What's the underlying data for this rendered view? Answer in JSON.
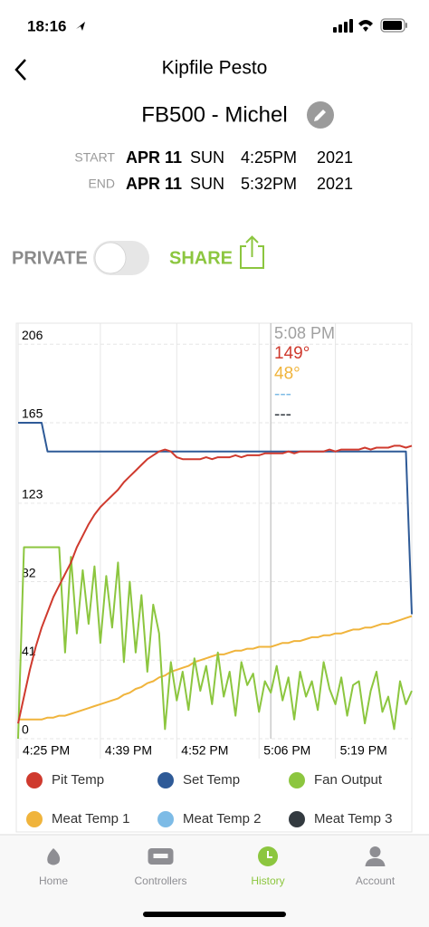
{
  "status_bar": {
    "time": "18:16"
  },
  "header": {
    "title": "Kipfile Pesto"
  },
  "device": {
    "name": "FB500 - Michel"
  },
  "session": {
    "rows": [
      {
        "label": "START",
        "date": "APR 11",
        "day": "SUN",
        "time": "4:25PM",
        "year": "2021"
      },
      {
        "label": "END",
        "date": "APR 11",
        "day": "SUN",
        "time": "5:32PM",
        "year": "2021"
      }
    ]
  },
  "sharing": {
    "private_label": "PRIVATE",
    "share_label": "SHARE",
    "private": false
  },
  "chart_data": {
    "type": "line",
    "x": [
      "4:25 PM",
      "4:26 PM",
      "4:27 PM",
      "4:28 PM",
      "4:29 PM",
      "4:30 PM",
      "4:31 PM",
      "4:32 PM",
      "4:33 PM",
      "4:34 PM",
      "4:35 PM",
      "4:36 PM",
      "4:37 PM",
      "4:38 PM",
      "4:39 PM",
      "4:40 PM",
      "4:41 PM",
      "4:42 PM",
      "4:43 PM",
      "4:44 PM",
      "4:45 PM",
      "4:46 PM",
      "4:47 PM",
      "4:48 PM",
      "4:49 PM",
      "4:50 PM",
      "4:51 PM",
      "4:52 PM",
      "4:53 PM",
      "4:54 PM",
      "4:55 PM",
      "4:56 PM",
      "4:57 PM",
      "4:58 PM",
      "4:59 PM",
      "5:00 PM",
      "5:01 PM",
      "5:02 PM",
      "5:03 PM",
      "5:04 PM",
      "5:05 PM",
      "5:06 PM",
      "5:07 PM",
      "5:08 PM",
      "5:09 PM",
      "5:10 PM",
      "5:11 PM",
      "5:12 PM",
      "5:13 PM",
      "5:14 PM",
      "5:15 PM",
      "5:16 PM",
      "5:17 PM",
      "5:18 PM",
      "5:19 PM",
      "5:20 PM",
      "5:21 PM",
      "5:22 PM",
      "5:23 PM",
      "5:24 PM",
      "5:25 PM",
      "5:26 PM",
      "5:27 PM",
      "5:28 PM",
      "5:29 PM",
      "5:30 PM",
      "5:31 PM",
      "5:32 PM"
    ],
    "xticks": [
      "4:25 PM",
      "4:39 PM",
      "4:52 PM",
      "5:06 PM",
      "5:19 PM"
    ],
    "ylim": [
      0,
      217
    ],
    "yticks": [
      0,
      41,
      82,
      123,
      165,
      206
    ],
    "grid": true,
    "series": [
      {
        "name": "Pit Temp",
        "color": "#cf3a2e",
        "values": [
          8,
          22,
          36,
          48,
          58,
          66,
          74,
          80,
          86,
          92,
          100,
          106,
          112,
          117,
          121,
          124,
          127,
          130,
          134,
          137,
          140,
          143,
          146,
          148,
          150,
          151,
          150,
          147,
          146,
          146,
          146,
          146,
          147,
          146,
          147,
          147,
          147,
          148,
          147,
          148,
          148,
          148,
          149,
          149,
          149,
          149,
          150,
          149,
          150,
          150,
          150,
          150,
          150,
          151,
          150,
          151,
          151,
          151,
          151,
          152,
          151,
          152,
          152,
          152,
          153,
          153,
          152,
          153
        ]
      },
      {
        "name": "Set Temp",
        "color": "#2e5a97",
        "values": [
          165,
          165,
          165,
          165,
          165,
          150,
          150,
          150,
          150,
          150,
          150,
          150,
          150,
          150,
          150,
          150,
          150,
          150,
          150,
          150,
          150,
          150,
          150,
          150,
          150,
          150,
          150,
          150,
          150,
          150,
          150,
          150,
          150,
          150,
          150,
          150,
          150,
          150,
          150,
          150,
          150,
          150,
          150,
          150,
          150,
          150,
          150,
          150,
          150,
          150,
          150,
          150,
          150,
          150,
          150,
          150,
          150,
          150,
          150,
          150,
          150,
          150,
          150,
          150,
          150,
          150,
          150,
          65
        ]
      },
      {
        "name": "Fan Output",
        "color": "#8cc63f",
        "values": [
          0,
          100,
          100,
          100,
          100,
          100,
          100,
          100,
          45,
          95,
          55,
          88,
          60,
          90,
          50,
          85,
          58,
          92,
          40,
          82,
          45,
          75,
          35,
          70,
          55,
          5,
          40,
          20,
          35,
          15,
          42,
          25,
          38,
          18,
          45,
          22,
          35,
          12,
          40,
          28,
          34,
          14,
          30,
          24,
          38,
          20,
          32,
          10,
          35,
          22,
          30,
          15,
          40,
          26,
          18,
          32,
          12,
          28,
          30,
          8,
          25,
          35,
          14,
          22,
          5,
          30,
          18,
          25
        ]
      },
      {
        "name": "Meat Temp 1",
        "color": "#f0b43c",
        "values": [
          10,
          10,
          10,
          10,
          10,
          11,
          11,
          12,
          12,
          13,
          14,
          15,
          16,
          17,
          18,
          19,
          20,
          21,
          23,
          24,
          26,
          27,
          29,
          30,
          32,
          33,
          35,
          36,
          37,
          38,
          40,
          41,
          42,
          43,
          44,
          44,
          45,
          46,
          46,
          47,
          47,
          48,
          48,
          48,
          49,
          50,
          50,
          51,
          51,
          52,
          53,
          53,
          54,
          54,
          55,
          55,
          56,
          57,
          57,
          58,
          58,
          59,
          60,
          60,
          61,
          62,
          63,
          64
        ]
      },
      {
        "name": "Meat Temp 2",
        "color": "#7dbbe6",
        "values": [
          null,
          null,
          null,
          null,
          null,
          null,
          null,
          null,
          null,
          null,
          null,
          null,
          null,
          null,
          null,
          null,
          null,
          null,
          null,
          null,
          null,
          null,
          null,
          null,
          null,
          null,
          null,
          null,
          null,
          null,
          null,
          null,
          null,
          null,
          null,
          null,
          null,
          null,
          null,
          null,
          null,
          null,
          null,
          null,
          null,
          null,
          null,
          null,
          null,
          null,
          null,
          null,
          null,
          null,
          null,
          null,
          null,
          null,
          null,
          null,
          null,
          null,
          null,
          null,
          null,
          null,
          null,
          null
        ]
      },
      {
        "name": "Meat Temp 3",
        "color": "#333a40",
        "values": [
          null,
          null,
          null,
          null,
          null,
          null,
          null,
          null,
          null,
          null,
          null,
          null,
          null,
          null,
          null,
          null,
          null,
          null,
          null,
          null,
          null,
          null,
          null,
          null,
          null,
          null,
          null,
          null,
          null,
          null,
          null,
          null,
          null,
          null,
          null,
          null,
          null,
          null,
          null,
          null,
          null,
          null,
          null,
          null,
          null,
          null,
          null,
          null,
          null,
          null,
          null,
          null,
          null,
          null,
          null,
          null,
          null,
          null,
          null,
          null,
          null,
          null,
          null,
          null,
          null,
          null,
          null,
          null
        ]
      }
    ],
    "tooltip": {
      "time": "5:08 PM",
      "color": "#a0a0a0",
      "readings": [
        {
          "label": "149°",
          "color": "#cf3a2e"
        },
        {
          "label": "48°",
          "color": "#f0b43c"
        },
        {
          "label": "---",
          "color": "#7dbbe6"
        },
        {
          "label": "---",
          "color": "#333a40"
        }
      ]
    }
  },
  "tab_bar": {
    "tabs": [
      {
        "label": "Home",
        "active": false
      },
      {
        "label": "Controllers",
        "active": false
      },
      {
        "label": "History",
        "active": true
      },
      {
        "label": "Account",
        "active": false
      }
    ]
  }
}
